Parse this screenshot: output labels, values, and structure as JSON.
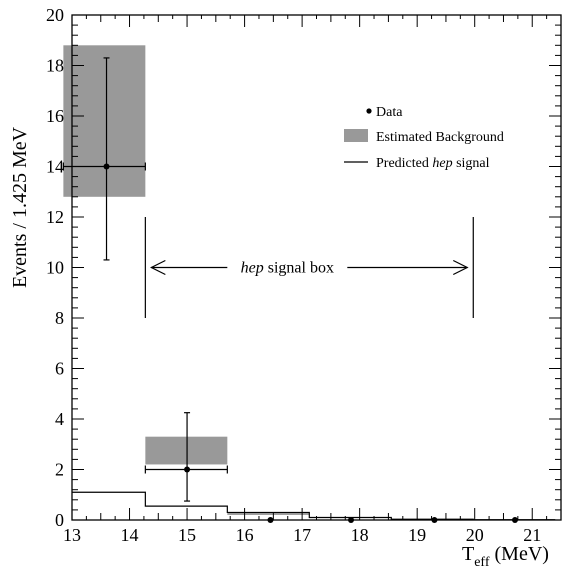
{
  "chart_data": {
    "type": "histogram",
    "x_axis": {
      "label_main": "T",
      "label_sub": "eff",
      "label_unit": " (MeV)",
      "range": [
        13,
        21.5
      ],
      "ticks": [
        13,
        14,
        15,
        16,
        17,
        18,
        19,
        20,
        21
      ],
      "tick_labels": [
        "13",
        "14",
        "15",
        "16",
        "17",
        "18",
        "19",
        "20",
        "21"
      ]
    },
    "y_axis": {
      "label": "Events / 1.425 MeV",
      "range": [
        0,
        20
      ],
      "ticks": [
        0,
        2,
        4,
        6,
        8,
        10,
        12,
        14,
        16,
        18,
        20
      ],
      "tick_labels": [
        "0",
        "2",
        "4",
        "6",
        "8",
        "10",
        "12",
        "14",
        "16",
        "18",
        "20"
      ]
    },
    "bin_edges": [
      12.85,
      14.275,
      15.7,
      17.125,
      18.55,
      19.975,
      21.4
    ],
    "background_boxes": [
      {
        "x_min": 12.85,
        "x_max": 14.275,
        "y_min": 12.8,
        "y_max": 18.8
      },
      {
        "x_min": 14.275,
        "x_max": 15.7,
        "y_min": 2.2,
        "y_max": 3.3
      },
      {
        "x_min": 15.7,
        "x_max": 17.125,
        "y_min": 0.2,
        "y_max": 0.3
      }
    ],
    "data_points": [
      {
        "x": 13.6,
        "y": 14.0,
        "y_err_low": 10.3,
        "y_err_high": 18.3,
        "x_err_low": 12.85,
        "x_err_high": 14.275
      },
      {
        "x": 15.0,
        "y": 2.0,
        "y_err_low": 0.75,
        "y_err_high": 4.25,
        "x_err_low": 14.275,
        "x_err_high": 15.7
      },
      {
        "x": 16.45,
        "y": 0.0
      },
      {
        "x": 17.85,
        "y": 0.0
      },
      {
        "x": 19.3,
        "y": 0.0
      },
      {
        "x": 20.7,
        "y": 0.0
      }
    ],
    "hep_signal": [
      1.1,
      0.55,
      0.3,
      0.1,
      0.03,
      0.01
    ],
    "signal_box": {
      "x_min": 14.275,
      "x_max": 19.975,
      "y_min": 8,
      "y_max": 12,
      "arrow_y": 10,
      "label_italic": "hep",
      "label_rest": " signal box"
    },
    "legend": {
      "placement": "upper-right",
      "items": [
        {
          "symbol": "marker",
          "label": "Data"
        },
        {
          "symbol": "box",
          "label": "Estimated Background"
        },
        {
          "symbol": "line",
          "label_prefix": "Predicted ",
          "label_italic": "hep",
          "label_suffix": " signal"
        }
      ]
    },
    "colors": {
      "background_fill": "#999999",
      "line": "#000000",
      "frame": "#000000"
    }
  }
}
